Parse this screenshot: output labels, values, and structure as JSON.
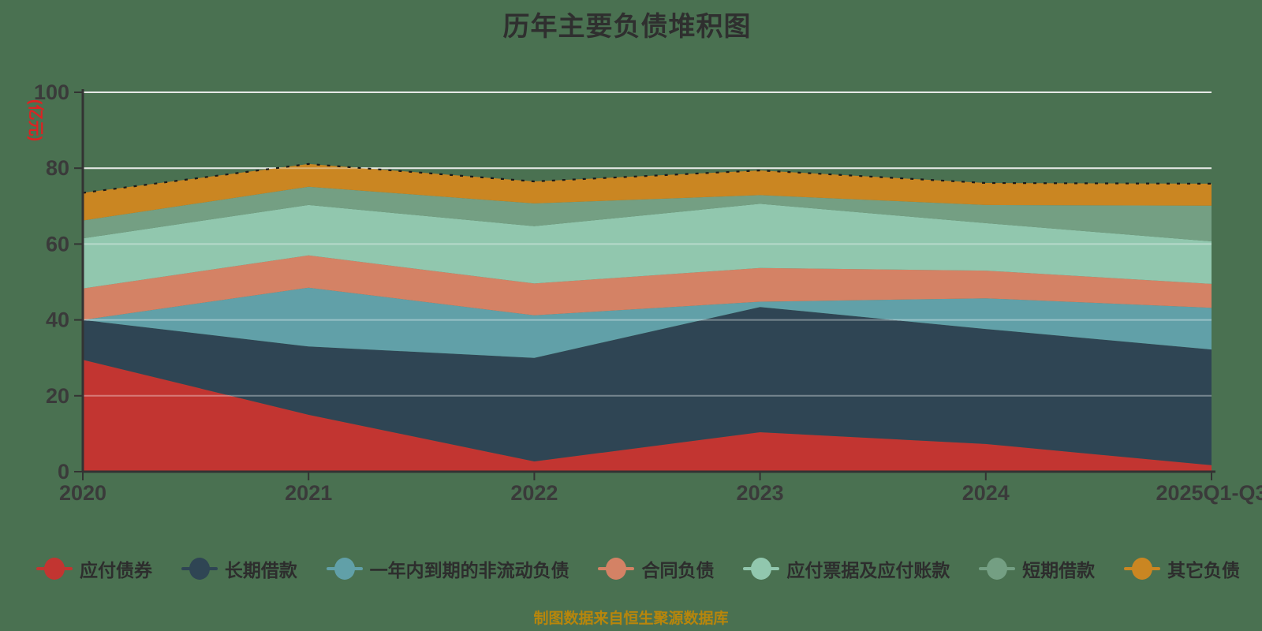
{
  "title": "历年主要负债堆积图",
  "y_axis_name": "(亿元)",
  "footer": {
    "source_note": "制图数据来自恒生聚源数据库"
  },
  "colors": {
    "background": "#4a7151",
    "axis": "#333333",
    "grid_under": "#d9ddd9",
    "grid_over": "rgba(255,255,255,0.35)",
    "title": "#2f2f2f",
    "axis_label": "#3a3a3a",
    "y_axis_name": "#dd2222",
    "footer": "#b8860b",
    "total_line": "#1a1a1a"
  },
  "chart_data": {
    "type": "area",
    "stacked": true,
    "title": "历年主要负债堆积图",
    "ylabel": "(亿元)",
    "ylim": [
      0,
      100
    ],
    "y_ticks": [
      0,
      20,
      40,
      60,
      80,
      100
    ],
    "grid": true,
    "legend_position": "bottom",
    "categories": [
      "2020",
      "2021",
      "2022",
      "2023",
      "2024",
      "2025Q1-Q3"
    ],
    "series": [
      {
        "name": "应付债券",
        "color": "#c23531",
        "values": [
          29.5,
          15.0,
          2.7,
          10.4,
          7.3,
          1.7
        ]
      },
      {
        "name": "长期借款",
        "color": "#2f4554",
        "values": [
          10.5,
          18.0,
          27.3,
          33.0,
          30.3,
          30.5
        ]
      },
      {
        "name": "一年内到期的非流动负债",
        "color": "#61a0a8",
        "values": [
          0.0,
          15.5,
          11.2,
          1.4,
          8.1,
          11.0
        ]
      },
      {
        "name": "合同负债",
        "color": "#d48265",
        "values": [
          8.3,
          8.5,
          8.4,
          8.9,
          7.3,
          6.3
        ]
      },
      {
        "name": "应付票据及应付账款",
        "color": "#91c7ae",
        "values": [
          13.2,
          13.3,
          15.1,
          16.9,
          12.5,
          11.2
        ]
      },
      {
        "name": "短期借款",
        "color": "#749f83",
        "values": [
          4.7,
          4.8,
          6.0,
          2.3,
          4.8,
          9.4
        ]
      },
      {
        "name": "其它负债",
        "color": "#ca8622",
        "values": [
          7.3,
          6.0,
          5.8,
          6.5,
          5.8,
          5.8
        ]
      }
    ],
    "totals": [
      73.5,
      81.1,
      76.5,
      79.4,
      76.1,
      75.9
    ],
    "total_top_line": {
      "style": "dashed",
      "color": "#1a1a1a"
    }
  }
}
